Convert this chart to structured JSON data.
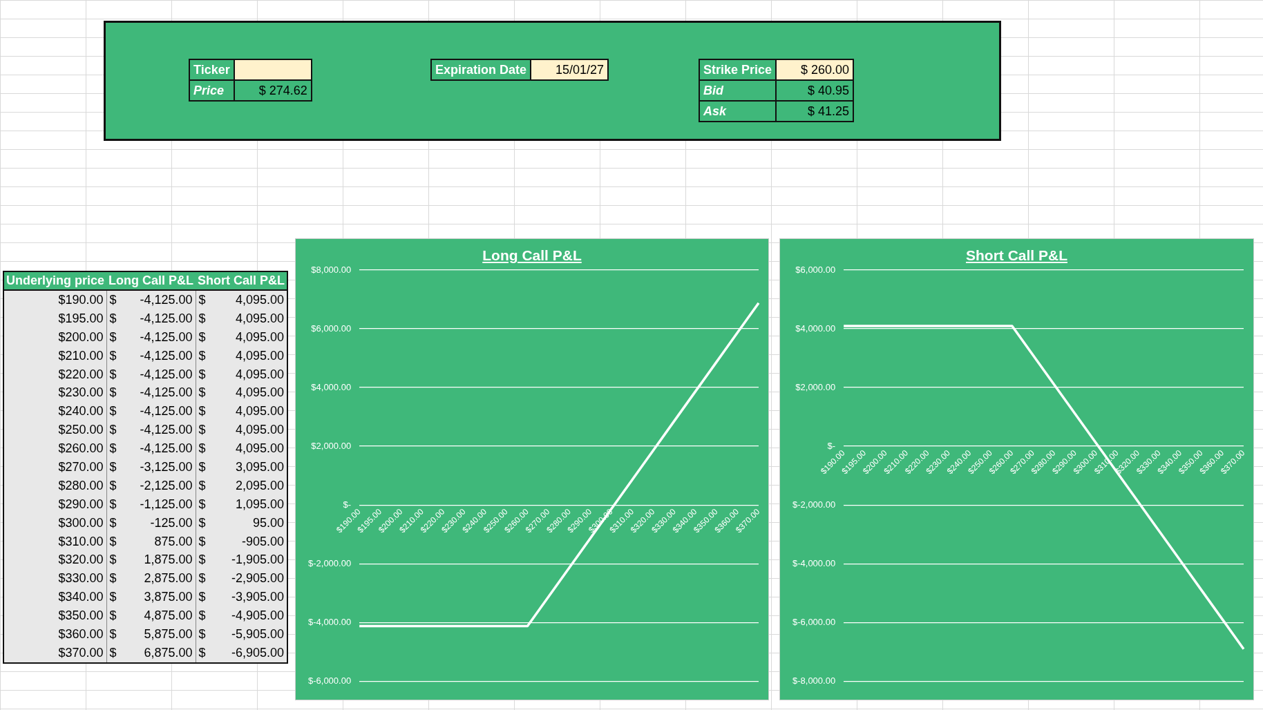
{
  "chart_data": [
    {
      "type": "other",
      "annotations": [
        "Ticker",
        "Price",
        "$ 274.62",
        "Expiration Date",
        "15/01/27",
        "Strike Price",
        "$ 260.00",
        "Bid",
        "$ 40.95",
        "Ask",
        "$ 41.25"
      ]
    },
    {
      "type": "line",
      "title": "Long Call P&L",
      "annotations": [
        "Underlying price"
      ],
      "categories": [
        "$190.00",
        "$195.00",
        "$200.00",
        "$210.00",
        "$220.00",
        "$230.00",
        "$240.00",
        "$250.00",
        "$260.00",
        "$270.00",
        "$280.00",
        "$290.00",
        "$300.00",
        "$310.00",
        "$320.00",
        "$330.00",
        "$340.00",
        "$350.00",
        "$360.00",
        "$370.00"
      ],
      "series": [
        {
          "color": "#ffffff",
          "values": [
            -4125,
            -4125,
            -4125,
            -4125,
            -4125,
            -4125,
            -4125,
            -4125,
            -4125,
            -3125,
            -2125,
            -1125,
            -125,
            875,
            1875,
            2875,
            3875,
            4875,
            5875,
            6875
          ],
          "value_labels": [
            "$ -4,125.00",
            "$ -4,125.00",
            "$ -4,125.00",
            "$ -4,125.00",
            "$ -4,125.00",
            "$ -4,125.00",
            "$ -4,125.00",
            "$ -4,125.00",
            "$ -4,125.00",
            "$ -3,125.00",
            "$ -2,125.00",
            "$ -1,125.00",
            "$ -125.00",
            "$ 875.00",
            "$ 1,875.00",
            "$ 2,875.00",
            "$ 3,875.00",
            "$ 4,875.00",
            "$ 5,875.00",
            "$ 6,875.00"
          ]
        }
      ],
      "ylim": [
        -6000,
        8000
      ],
      "yticks": [
        {
          "value": -6000,
          "label": "$-6,000.00"
        },
        {
          "value": -4000,
          "label": "$-4,000.00"
        },
        {
          "value": -2000,
          "label": "$-2,000.00"
        },
        {
          "value": 0,
          "label": "$-"
        },
        {
          "value": 2000,
          "label": "$2,000.00"
        },
        {
          "value": 4000,
          "label": "$4,000.00"
        },
        {
          "value": 6000,
          "label": "$6,000.00"
        },
        {
          "value": 8000,
          "label": "$8,000.00"
        }
      ],
      "grid": "y",
      "marker": "none"
    },
    {
      "type": "line",
      "title": "Short Call P&L",
      "categories": [
        "$190.00",
        "$195.00",
        "$200.00",
        "$210.00",
        "$220.00",
        "$230.00",
        "$240.00",
        "$250.00",
        "$260.00",
        "$270.00",
        "$280.00",
        "$290.00",
        "$300.00",
        "$310.00",
        "$320.00",
        "$330.00",
        "$340.00",
        "$350.00",
        "$360.00",
        "$370.00"
      ],
      "series": [
        {
          "color": "#ffffff",
          "values": [
            4095,
            4095,
            4095,
            4095,
            4095,
            4095,
            4095,
            4095,
            4095,
            3095,
            2095,
            1095,
            95,
            -905,
            -1905,
            -2905,
            -3905,
            -4905,
            -5905,
            -6905
          ],
          "value_labels": [
            "$ 4,095.00",
            "$ 4,095.00",
            "$ 4,095.00",
            "$ 4,095.00",
            "$ 4,095.00",
            "$ 4,095.00",
            "$ 4,095.00",
            "$ 4,095.00",
            "$ 4,095.00",
            "$ 3,095.00",
            "$ 2,095.00",
            "$ 1,095.00",
            "$ 95.00",
            "$ -905.00",
            "$ -1,905.00",
            "$ -2,905.00",
            "$ -3,905.00",
            "$ -4,905.00",
            "$ -5,905.00",
            "$ -6,905.00"
          ]
        }
      ],
      "ylim": [
        -8000,
        6000
      ],
      "yticks": [
        {
          "value": -8000,
          "label": "$-8,000.00"
        },
        {
          "value": -6000,
          "label": "$-6,000.00"
        },
        {
          "value": -4000,
          "label": "$-4,000.00"
        },
        {
          "value": -2000,
          "label": "$-2,000.00"
        },
        {
          "value": 0,
          "label": "$-"
        },
        {
          "value": 2000,
          "label": "$2,000.00"
        },
        {
          "value": 4000,
          "label": "$4,000.00"
        },
        {
          "value": 6000,
          "label": "$6,000.00"
        }
      ],
      "grid": "y",
      "marker": "none"
    }
  ]
}
